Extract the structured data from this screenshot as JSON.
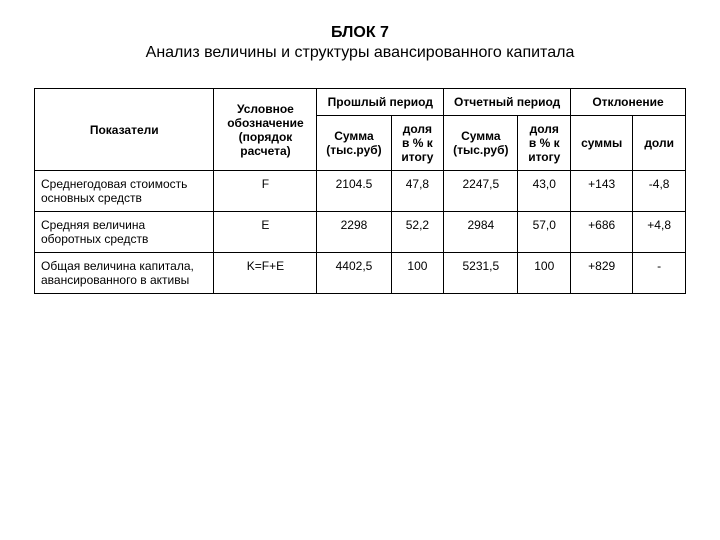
{
  "title_block": "БЛОК 7",
  "title_sub": "Анализ величины и структуры авансированного капитала",
  "header": {
    "indicators": "Показатели",
    "symbol": "Условное обозначение (порядок расчета)",
    "prev": "Прошлый период",
    "curr": "Отчетный период",
    "dev": "Отклонение",
    "sum": "Сумма (тыс.руб)",
    "share": "доля в % к итогу",
    "dev_sum": "суммы",
    "dev_share": "доли"
  },
  "rows": [
    {
      "name": "Среднегодовая стоимость основных средств",
      "sym": "F",
      "prev_sum": "2104.5",
      "prev_sh": "47,8",
      "curr_sum": "2247,5",
      "curr_sh": "43,0",
      "d_sum": "+143",
      "d_sh": "-4,8"
    },
    {
      "name": "Средняя величина оборотных средств",
      "sym": "E",
      "prev_sum": "2298",
      "prev_sh": "52,2",
      "curr_sum": "2984",
      "curr_sh": "57,0",
      "d_sum": "+686",
      "d_sh": "+4,8"
    },
    {
      "name": "Общая величина капитала, авансированного в активы",
      "sym": "K=F+E",
      "prev_sum": "4402,5",
      "prev_sh": "100",
      "curr_sum": "5231,5",
      "curr_sh": "100",
      "d_sum": "+829",
      "d_sh": "-"
    }
  ]
}
